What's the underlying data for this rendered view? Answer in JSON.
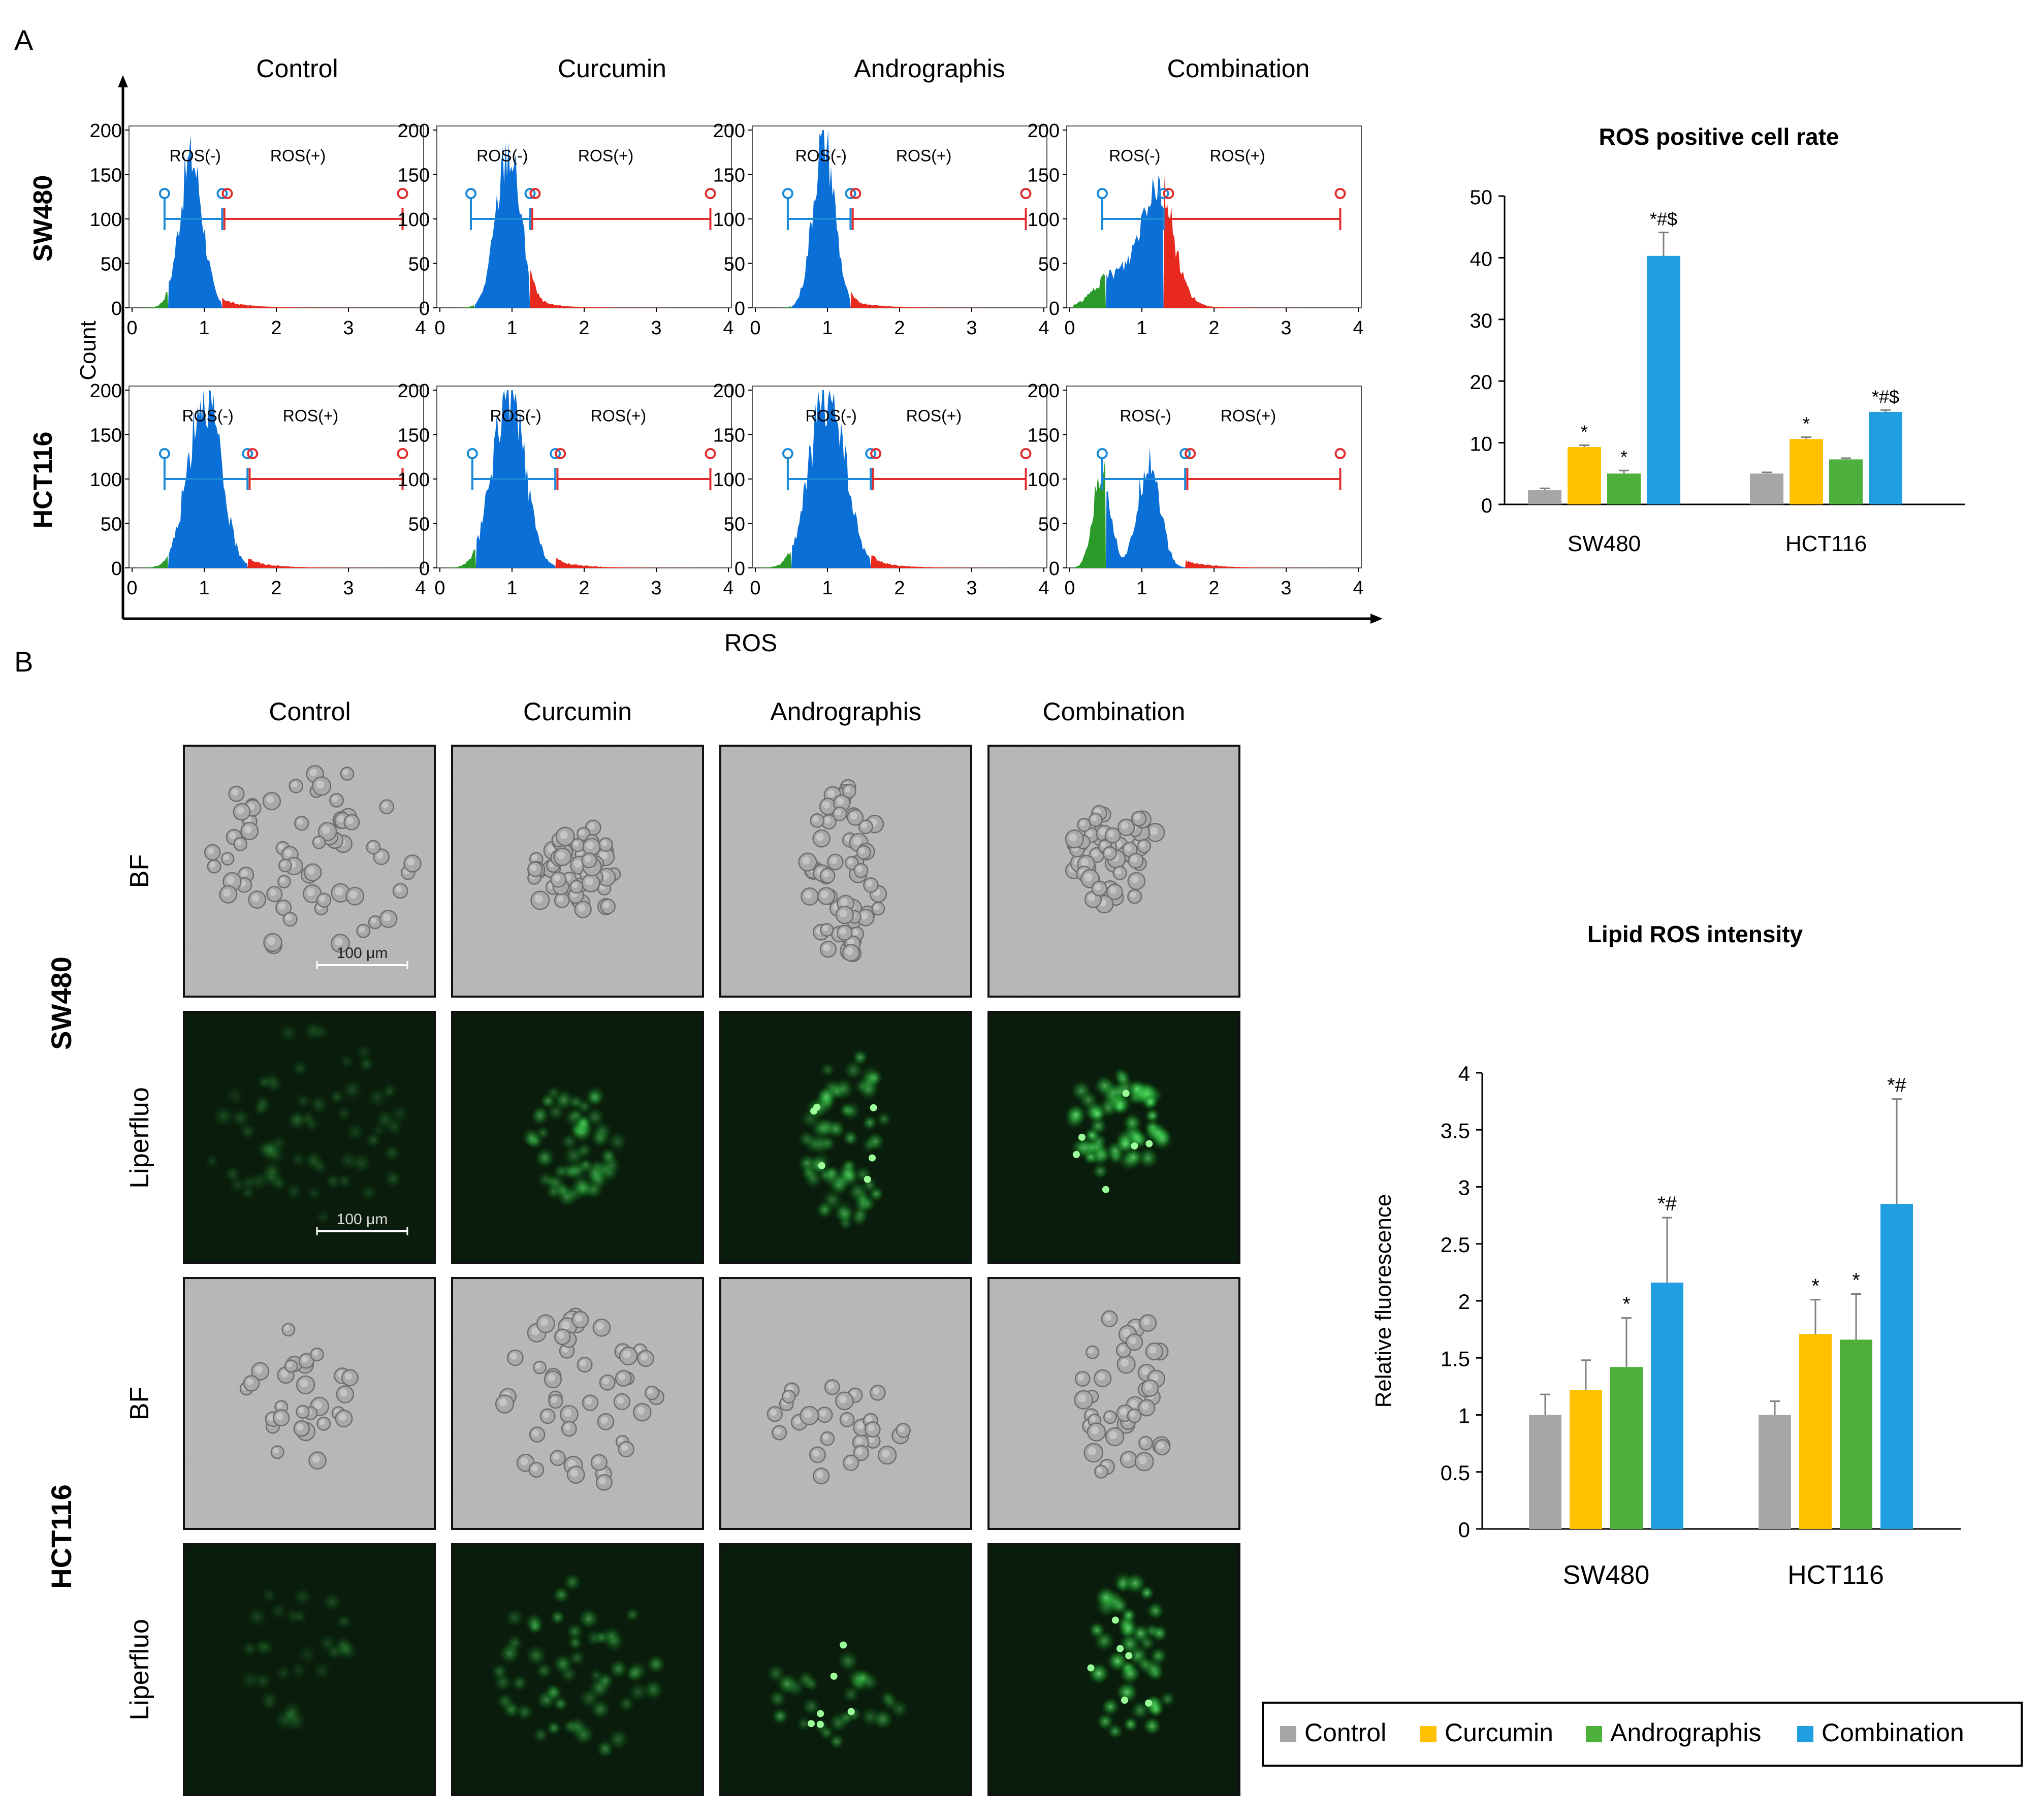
{
  "panel_a_letter": "A",
  "panel_b_letter": "B",
  "treatments": [
    "Control",
    "Curcumin",
    "Andrographis",
    "Combination"
  ],
  "cell_lines": [
    "SW480",
    "HCT116"
  ],
  "colors": {
    "Control": "#a6a6a6",
    "Curcumin": "#ffc000",
    "Andrographis": "#4daf3c",
    "Combination": "#1f9fe0"
  },
  "flow": {
    "y_axis_label": "Count",
    "x_axis_label": "ROS",
    "y_ticks": [
      "0",
      "50",
      "100",
      "150",
      "200"
    ],
    "x_ticks": [
      "0",
      "1",
      "2",
      "3",
      "4"
    ],
    "gate_neg_label": "ROS(-)",
    "gate_pos_label": "ROS(+)"
  },
  "micro": {
    "row_labels": [
      "BF",
      "Liperfluo",
      "BF",
      "Liperfluo"
    ],
    "scale_bar_label": "100 μm"
  },
  "legend": [
    "Control",
    "Curcumin",
    "Andrographis",
    "Combination"
  ],
  "chart_data": [
    {
      "type": "bar",
      "title": "ROS positive cell rate",
      "xlabel": "",
      "ylabel": "",
      "categories": [
        "SW480",
        "HCT116"
      ],
      "ylim": [
        0,
        50
      ],
      "yticks": [
        "0",
        "10",
        "20",
        "30",
        "40",
        "50"
      ],
      "series": [
        {
          "name": "Control",
          "values": [
            2.3,
            5.0
          ],
          "errors": [
            0.3,
            0.2
          ],
          "sig": [
            "",
            ""
          ]
        },
        {
          "name": "Curcumin",
          "values": [
            9.3,
            10.6
          ],
          "errors": [
            0.3,
            0.3
          ],
          "sig": [
            "*",
            "*"
          ]
        },
        {
          "name": "Andrographis",
          "values": [
            5.0,
            7.3
          ],
          "errors": [
            0.5,
            0.2
          ],
          "sig": [
            "*",
            ""
          ]
        },
        {
          "name": "Combination",
          "values": [
            40.3,
            15.0
          ],
          "errors": [
            3.8,
            0.3
          ],
          "sig": [
            "*#$",
            "*#$"
          ]
        }
      ],
      "grid": false
    },
    {
      "type": "bar",
      "title": "Lipid ROS intensity",
      "xlabel": "",
      "ylabel": "Relative fluorescence",
      "categories": [
        "SW480",
        "HCT116"
      ],
      "ylim": [
        0,
        4
      ],
      "yticks": [
        "0",
        "0.5",
        "1",
        "1.5",
        "2",
        "2.5",
        "3",
        "3.5",
        "4"
      ],
      "series": [
        {
          "name": "Control",
          "values": [
            1.0,
            1.0
          ],
          "errors": [
            0.18,
            0.12
          ],
          "sig": [
            "",
            ""
          ]
        },
        {
          "name": "Curcumin",
          "values": [
            1.22,
            1.71
          ],
          "errors": [
            0.26,
            0.3
          ],
          "sig": [
            "",
            "*"
          ]
        },
        {
          "name": "Andrographis",
          "values": [
            1.42,
            1.66
          ],
          "errors": [
            0.43,
            0.4
          ],
          "sig": [
            "*",
            "*"
          ]
        },
        {
          "name": "Combination",
          "values": [
            2.16,
            2.85
          ],
          "errors": [
            0.57,
            0.92
          ],
          "sig": [
            "*#",
            "*#"
          ]
        }
      ],
      "grid": false,
      "legend_position": "bottom-right"
    }
  ]
}
